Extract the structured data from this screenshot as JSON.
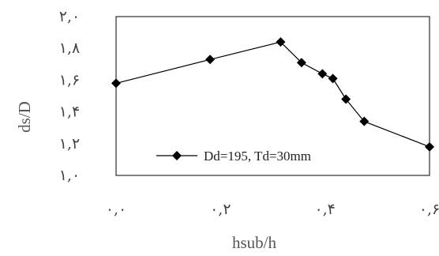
{
  "chart_data": {
    "type": "line",
    "xlabel": "hsub/h",
    "ylabel": "ds/D",
    "xlim": [
      0,
      0.6
    ],
    "ylim": [
      1.0,
      2.0
    ],
    "x_ticks": [
      0,
      0.2,
      0.4,
      0.6
    ],
    "x_tick_labels": [
      "۰,۰",
      "۰,۲",
      "۰,۴",
      "۰,۶"
    ],
    "y_ticks": [
      1.0,
      1.2,
      1.4,
      1.6,
      1.8,
      2.0
    ],
    "y_tick_labels": [
      "۱,۰",
      "۱,۲",
      "۱,۴",
      "۱,۶",
      "۱,۸",
      "۲,۰"
    ],
    "grid": false,
    "legend_position": "bottom-center",
    "series": [
      {
        "name": "Dd=195, Td=30mm",
        "color": "#000000",
        "marker": "diamond",
        "x": [
          0.0,
          0.18,
          0.315,
          0.355,
          0.395,
          0.415,
          0.44,
          0.475,
          0.6
        ],
        "y": [
          1.58,
          1.73,
          1.84,
          1.71,
          1.64,
          1.61,
          1.48,
          1.34,
          1.18
        ]
      }
    ]
  }
}
